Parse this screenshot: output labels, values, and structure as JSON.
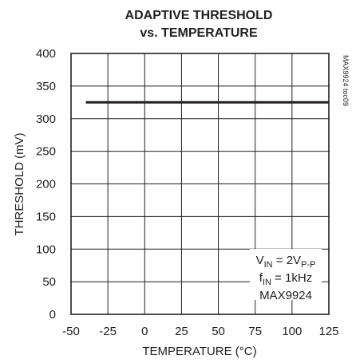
{
  "chart_data": {
    "type": "line",
    "title_line1": "ADAPTIVE THRESHOLD",
    "title_line2": "vs. TEMPERATURE",
    "xlabel": "TEMPERATURE (°C)",
    "ylabel": "THRESHOLD (mV)",
    "xlim": [
      -50,
      125
    ],
    "ylim": [
      0,
      400
    ],
    "x_ticks": [
      "-50",
      "-25",
      "0",
      "25",
      "50",
      "75",
      "100",
      "125"
    ],
    "y_ticks": [
      "0",
      "50",
      "100",
      "150",
      "200",
      "250",
      "300",
      "350",
      "400"
    ],
    "grid": true,
    "series": [
      {
        "x": [
          -40,
          125
        ],
        "values": [
          325,
          325
        ]
      }
    ],
    "annotation": {
      "vin_base": "V",
      "vin_sub": "IN",
      "vin_eq": " = 2V",
      "vin_sub2": "P-P",
      "fin_base": "f",
      "fin_sub": "IN",
      "fin_eq": " = 1kHz",
      "part": "MAX9924"
    },
    "side_code": "MAX9924 toc09",
    "colors": {
      "ink": "#231f20",
      "background": "#ffffff"
    }
  }
}
